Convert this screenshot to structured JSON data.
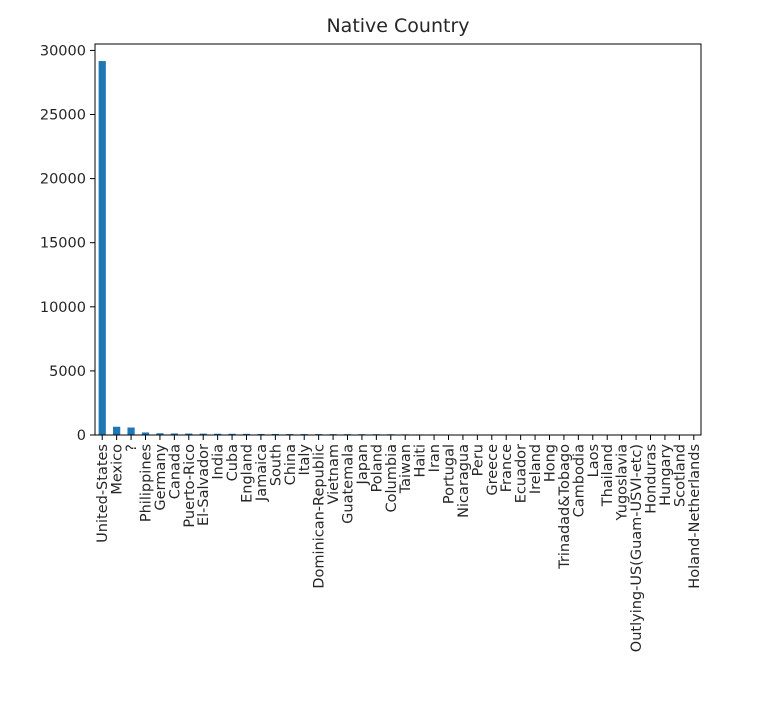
{
  "chart_data": {
    "type": "bar",
    "title": "Native Country",
    "xlabel": "",
    "ylabel": "",
    "ylim": [
      0,
      30500
    ],
    "yticks": [
      0,
      5000,
      10000,
      15000,
      20000,
      25000,
      30000
    ],
    "ytick_labels": [
      "0",
      "5000",
      "10000",
      "15000",
      "20000",
      "25000",
      "30000"
    ],
    "grid": false,
    "legend": "none",
    "bar_color": "#1f77b4",
    "categories": [
      "United-States",
      "Mexico",
      "?",
      "Philippines",
      "Germany",
      "Canada",
      "Puerto-Rico",
      "El-Salvador",
      "India",
      "Cuba",
      "England",
      "Jamaica",
      "South",
      "China",
      "Italy",
      "Dominican-Republic",
      "Vietnam",
      "Guatemala",
      "Japan",
      "Poland",
      "Columbia",
      "Taiwan",
      "Haiti",
      "Iran",
      "Portugal",
      "Nicaragua",
      "Peru",
      "Greece",
      "France",
      "Ecuador",
      "Ireland",
      "Hong",
      "Trinadad&Tobago",
      "Cambodia",
      "Laos",
      "Thailand",
      "Yugoslavia",
      "Outlying-US(Guam-USVI-etc)",
      "Honduras",
      "Hungary",
      "Scotland",
      "Holand-Netherlands"
    ],
    "values": [
      29170,
      643,
      583,
      198,
      137,
      121,
      114,
      106,
      100,
      95,
      90,
      81,
      80,
      75,
      73,
      70,
      67,
      64,
      62,
      60,
      59,
      51,
      44,
      43,
      37,
      34,
      31,
      29,
      29,
      28,
      24,
      20,
      19,
      19,
      18,
      18,
      16,
      14,
      13,
      13,
      12,
      1
    ]
  }
}
